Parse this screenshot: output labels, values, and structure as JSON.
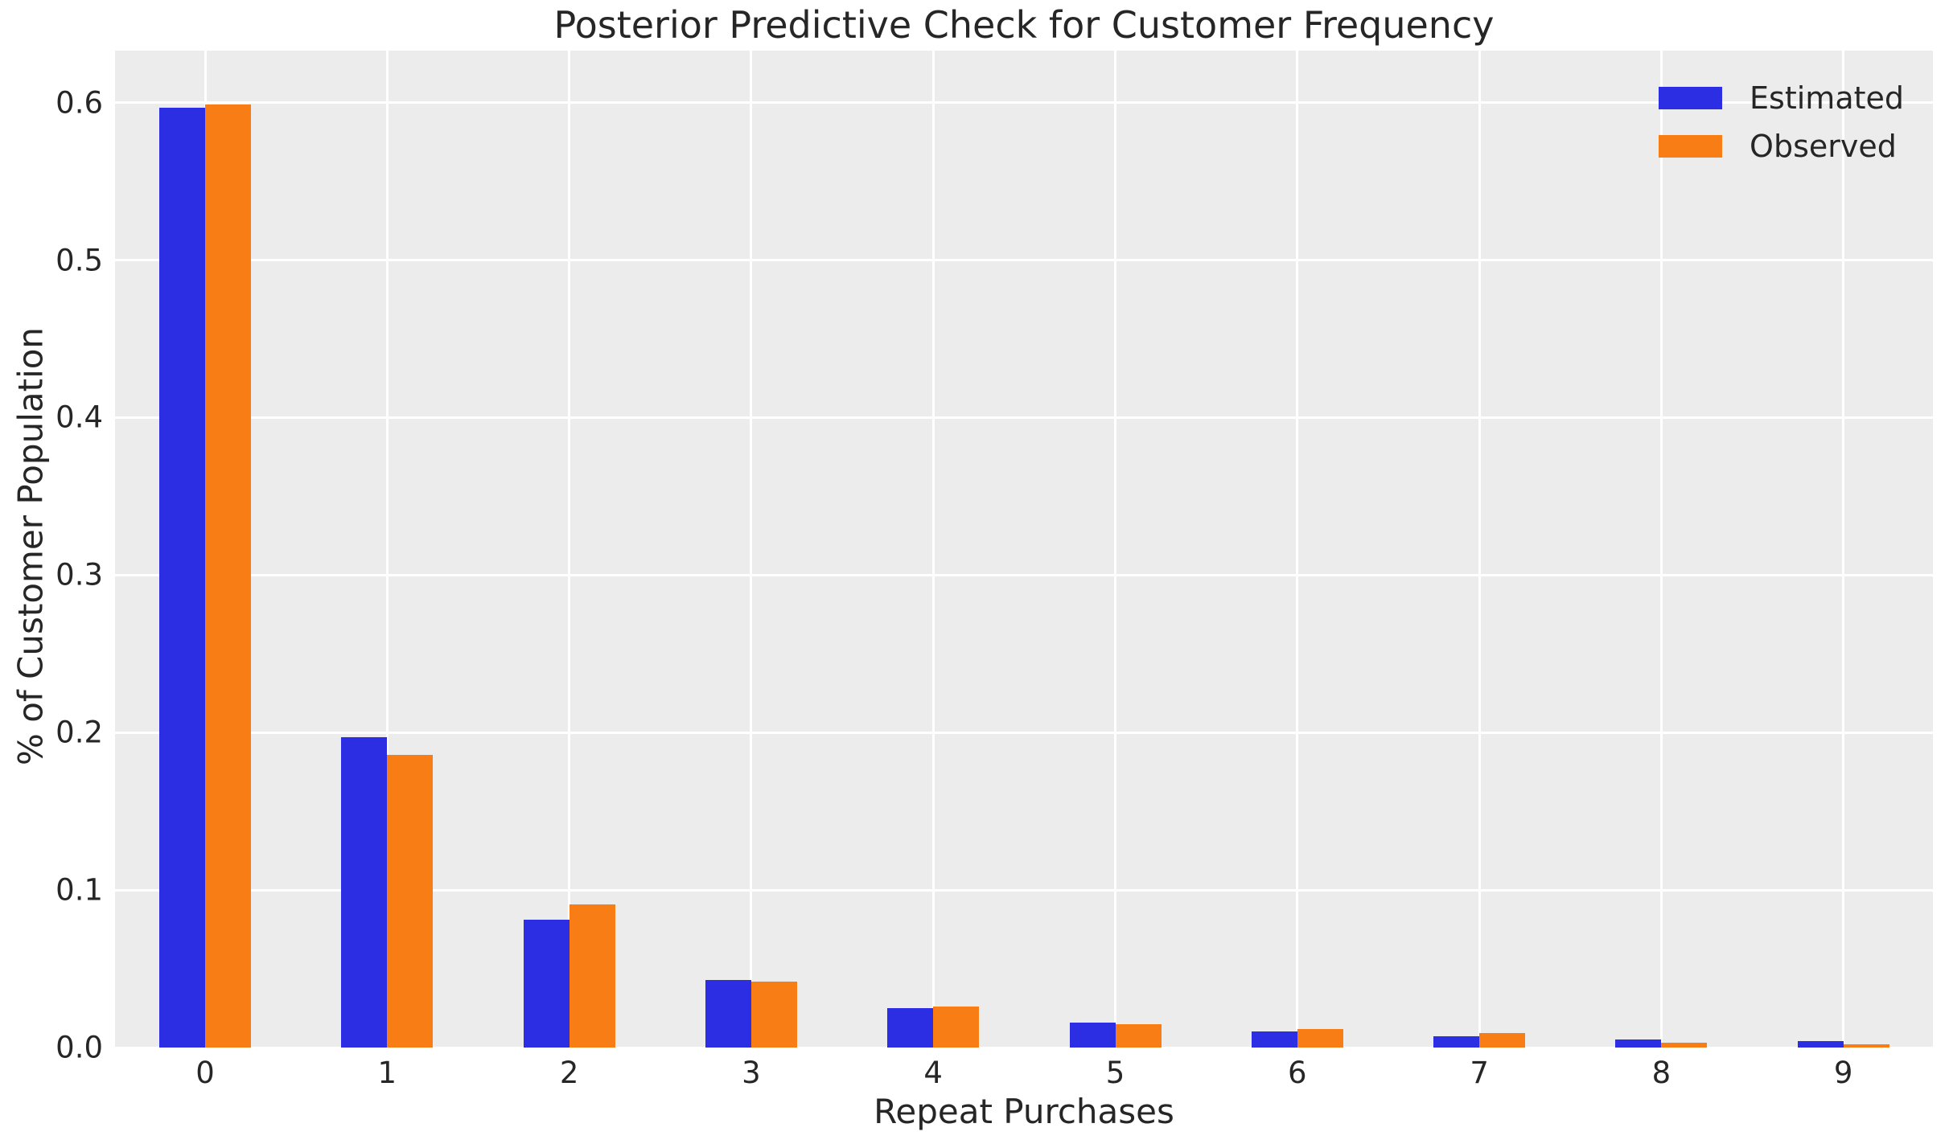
{
  "chart_data": {
    "type": "bar",
    "title": "Posterior Predictive Check for Customer Frequency",
    "xlabel": "Repeat Purchases",
    "ylabel": "% of Customer Population",
    "categories": [
      "0",
      "1",
      "2",
      "3",
      "4",
      "5",
      "6",
      "7",
      "8",
      "9"
    ],
    "series": [
      {
        "name": "Estimated",
        "color": "#2b2ee3",
        "values": [
          0.597,
          0.197,
          0.081,
          0.043,
          0.025,
          0.016,
          0.01,
          0.007,
          0.005,
          0.004
        ]
      },
      {
        "name": "Observed",
        "color": "#f87d14",
        "values": [
          0.599,
          0.186,
          0.091,
          0.042,
          0.026,
          0.015,
          0.012,
          0.009,
          0.003,
          0.002
        ]
      }
    ],
    "yticks": [
      0.0,
      0.1,
      0.2,
      0.3,
      0.4,
      0.5,
      0.6
    ],
    "ytick_labels": [
      "0.0",
      "0.1",
      "0.2",
      "0.3",
      "0.4",
      "0.5",
      "0.6"
    ],
    "ylim": [
      0,
      0.633
    ],
    "grid": true,
    "legend_position": "upper right",
    "plot_background": "#ececec",
    "gridline_color": "#ffffff",
    "text_color": "#262626"
  }
}
